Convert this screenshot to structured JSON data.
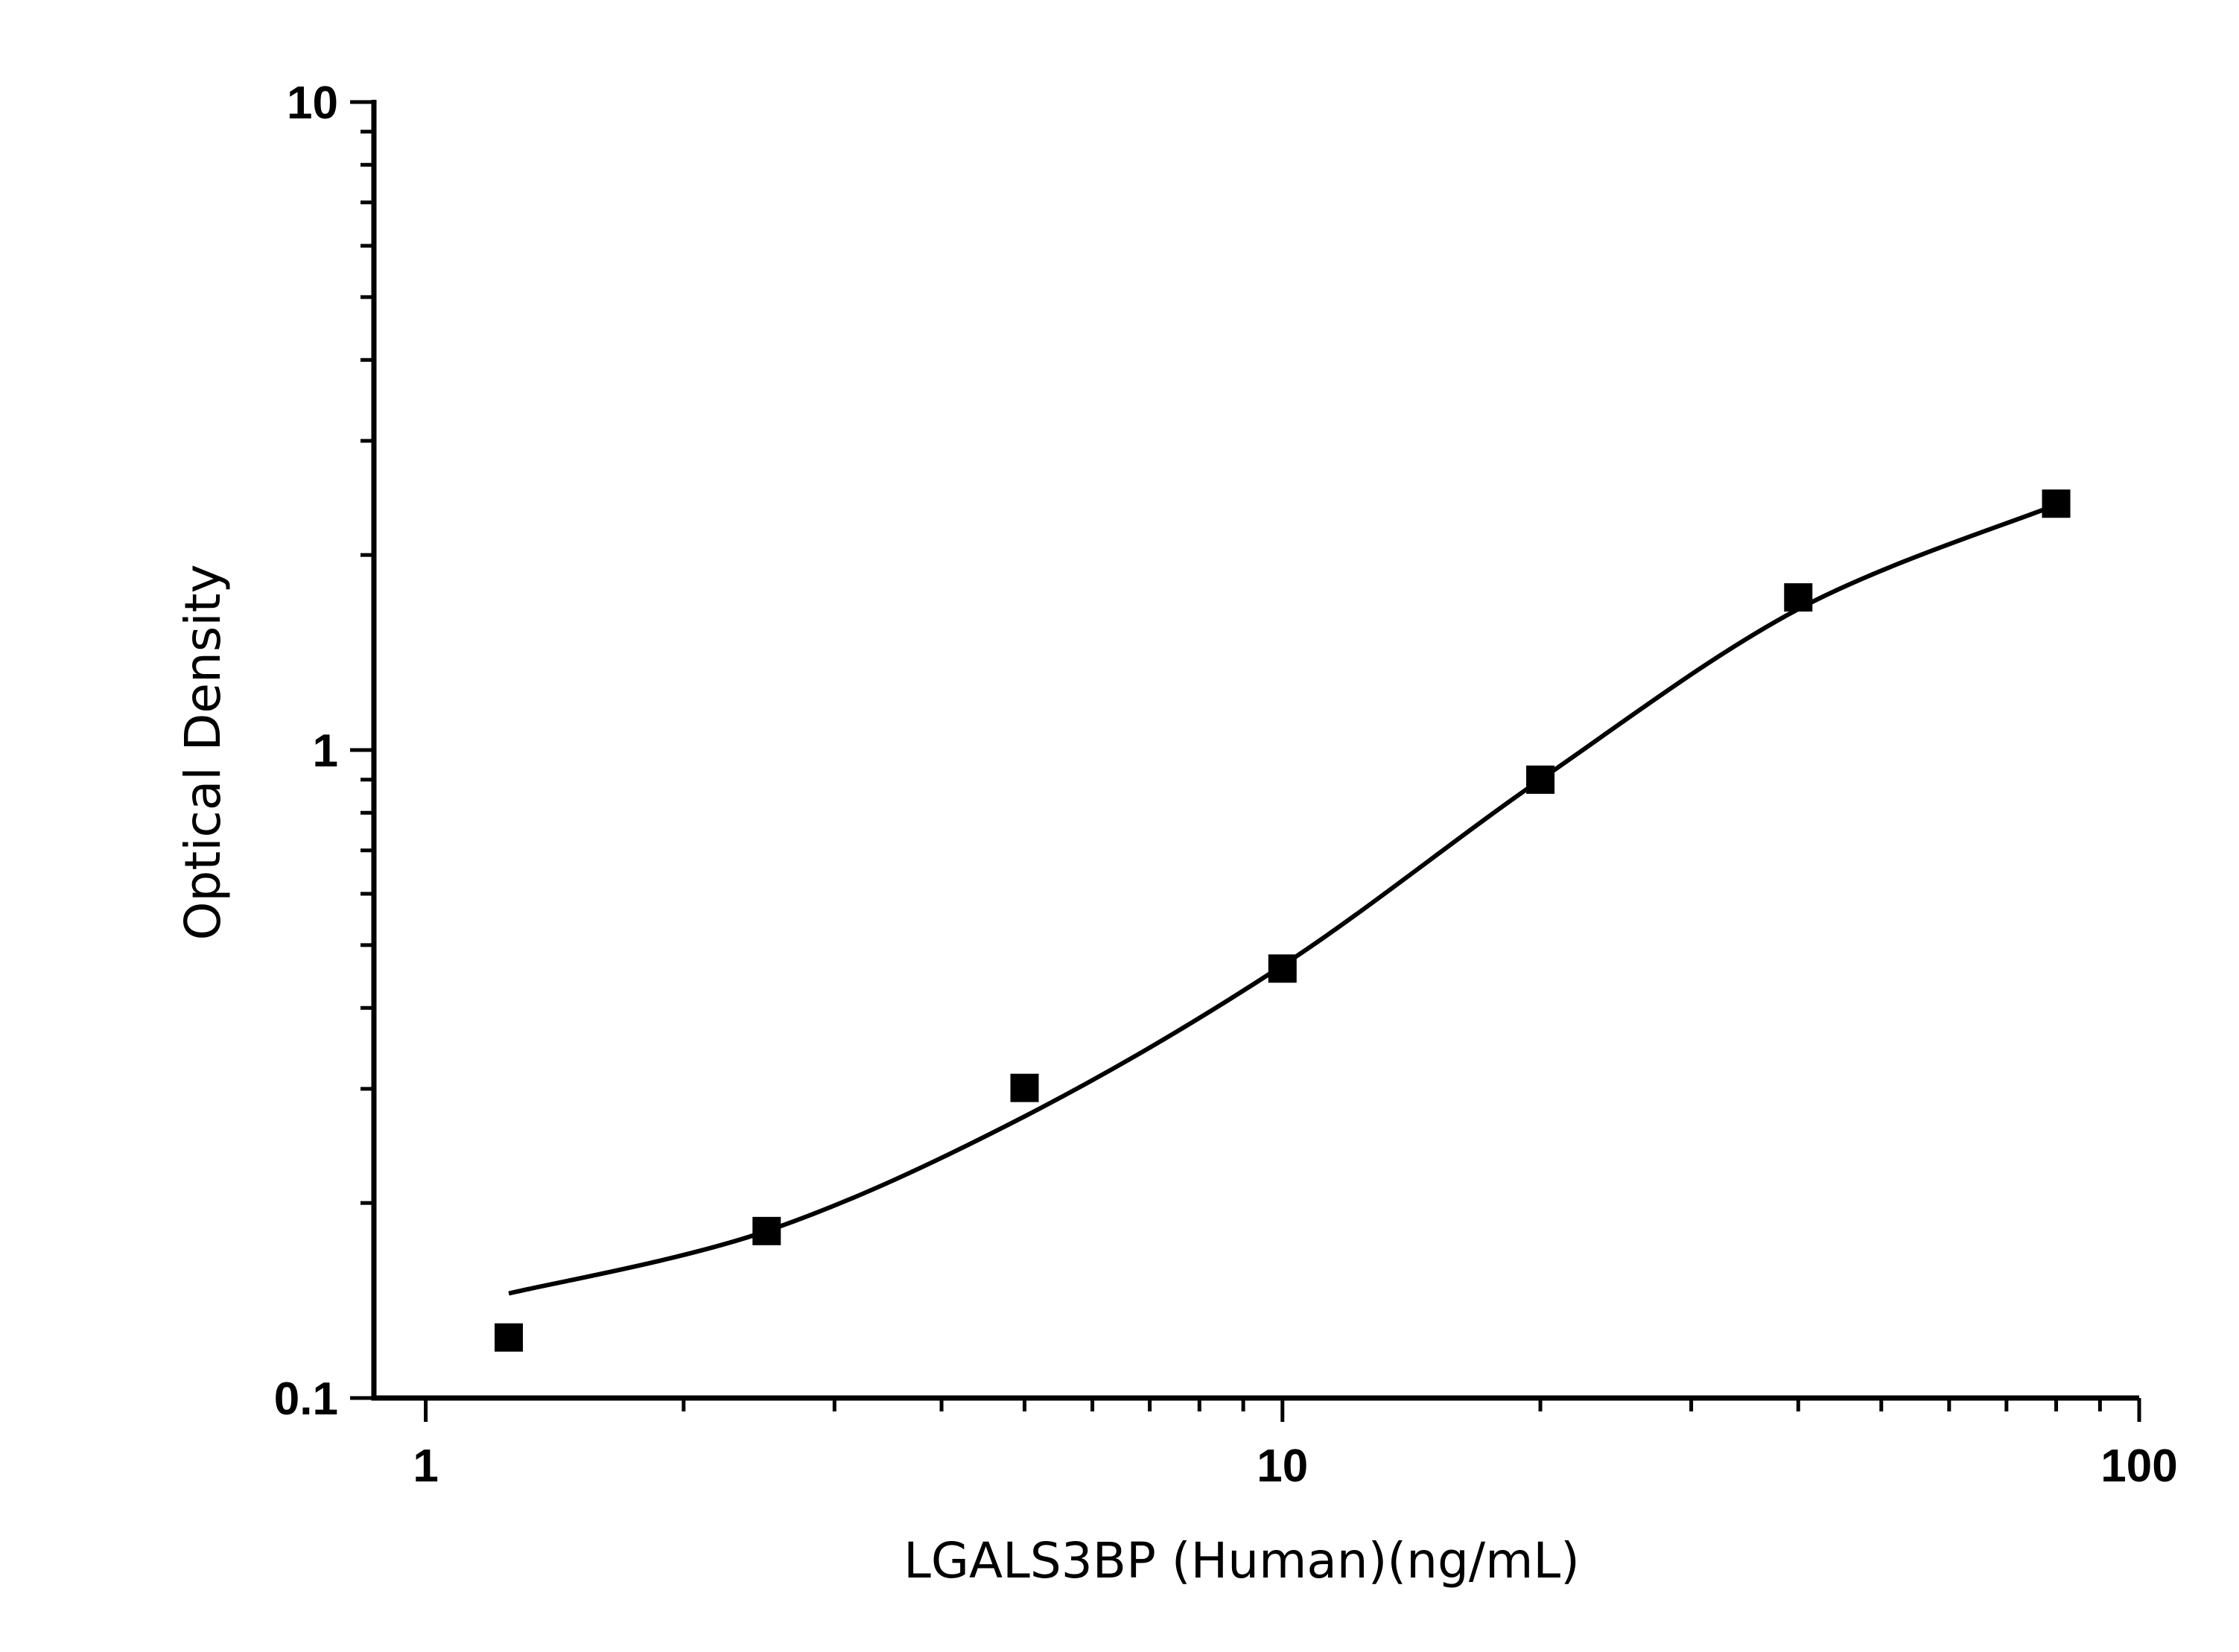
{
  "chart_data": {
    "type": "scatter",
    "title": "",
    "xlabel": "LGALS3BP (Human)(ng/mL)",
    "ylabel": "Optical Density",
    "xscale": "log",
    "yscale": "log",
    "xlim": [
      0.87,
      100
    ],
    "ylim": [
      0.1,
      10
    ],
    "grid": false,
    "legend": "none",
    "x_tick_labels": [
      "1",
      "10",
      "100"
    ],
    "y_tick_labels": [
      "0.1",
      "1",
      "10"
    ],
    "series": [
      {
        "marker": "square",
        "color": "#000000",
        "x": [
          1.25,
          2.5,
          5,
          10,
          20,
          40,
          80
        ],
        "y": [
          0.124,
          0.181,
          0.301,
          0.46,
          0.9,
          1.72,
          2.4
        ]
      }
    ],
    "fit_curve": {
      "style": "line",
      "color": "#000000",
      "x": [
        1.25,
        2.5,
        5,
        10,
        20,
        40,
        80
      ],
      "y": [
        0.145,
        0.181,
        0.272,
        0.465,
        0.9,
        1.65,
        2.39
      ]
    }
  }
}
